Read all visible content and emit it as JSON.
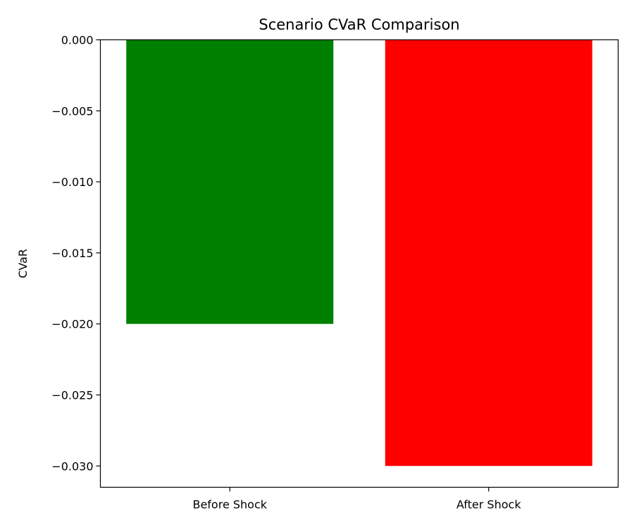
{
  "chart_data": {
    "type": "bar",
    "title": "Scenario CVaR Comparison",
    "xlabel": "",
    "ylabel": "CVaR",
    "categories": [
      "Before Shock",
      "After Shock"
    ],
    "values": [
      -0.02,
      -0.03
    ],
    "colors": [
      "#008000",
      "#ff0000"
    ],
    "ylim": [
      -0.0315,
      0.0
    ],
    "yticks": [
      0.0,
      -0.005,
      -0.01,
      -0.015,
      -0.02,
      -0.025,
      -0.03
    ],
    "ytick_labels": [
      "0.000",
      "−0.005",
      "−0.010",
      "−0.015",
      "−0.020",
      "−0.025",
      "−0.030"
    ],
    "grid": false,
    "legend": "none"
  }
}
